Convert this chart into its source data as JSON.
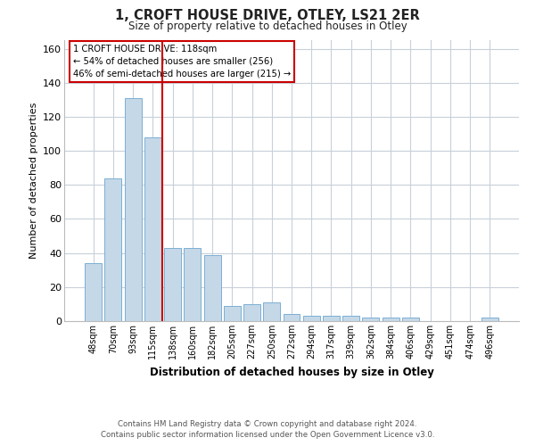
{
  "title": "1, CROFT HOUSE DRIVE, OTLEY, LS21 2ER",
  "subtitle": "Size of property relative to detached houses in Otley",
  "xlabel": "Distribution of detached houses by size in Otley",
  "ylabel": "Number of detached properties",
  "categories": [
    "48sqm",
    "70sqm",
    "93sqm",
    "115sqm",
    "138sqm",
    "160sqm",
    "182sqm",
    "205sqm",
    "227sqm",
    "250sqm",
    "272sqm",
    "294sqm",
    "317sqm",
    "339sqm",
    "362sqm",
    "384sqm",
    "406sqm",
    "429sqm",
    "451sqm",
    "474sqm",
    "496sqm"
  ],
  "values": [
    34,
    84,
    131,
    108,
    43,
    43,
    39,
    9,
    10,
    11,
    4,
    3,
    3,
    3,
    2,
    2,
    2,
    0,
    0,
    0,
    2
  ],
  "bar_color": "#c5d8e8",
  "bar_edge_color": "#7bafd4",
  "grid_color": "#c8d0da",
  "property_line_x": 3.5,
  "property_label": "1 CROFT HOUSE DRIVE: 118sqm",
  "annotation_line1": "← 54% of detached houses are smaller (256)",
  "annotation_line2": "46% of semi-detached houses are larger (215) →",
  "annotation_box_color": "#ffffff",
  "annotation_box_edge": "#cc0000",
  "property_line_color": "#cc0000",
  "ylim": [
    0,
    165
  ],
  "yticks": [
    0,
    20,
    40,
    60,
    80,
    100,
    120,
    140,
    160
  ],
  "footer_line1": "Contains HM Land Registry data © Crown copyright and database right 2024.",
  "footer_line2": "Contains public sector information licensed under the Open Government Licence v3.0."
}
